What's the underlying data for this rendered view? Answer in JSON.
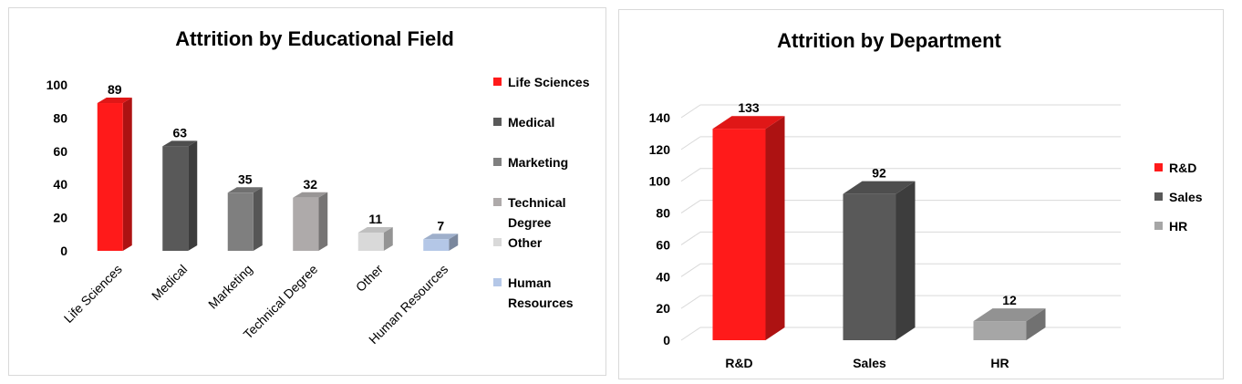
{
  "chart_data": [
    {
      "type": "bar",
      "title": "Attrition by Educational Field",
      "categories": [
        "Life Sciences",
        "Medical",
        "Marketing",
        "Technical Degree",
        "Other",
        "Human Resources"
      ],
      "values": [
        89,
        63,
        35,
        32,
        11,
        7
      ],
      "colors": [
        "#ff1a1a",
        "#595959",
        "#7f7f7f",
        "#aeaaaa",
        "#d9d9d9",
        "#b4c7e7"
      ],
      "legend": [
        [
          "Life Sciences"
        ],
        [
          "Medical"
        ],
        [
          "Marketing"
        ],
        [
          "Technical",
          "Degree"
        ],
        [
          "Other"
        ],
        [
          "Human",
          "Resources"
        ]
      ],
      "yticks": [
        0,
        20,
        40,
        60,
        80,
        100
      ],
      "ylim": [
        0,
        100
      ],
      "legend_position": "right",
      "grid": false,
      "xlabel": "",
      "ylabel": ""
    },
    {
      "type": "bar",
      "title": "Attrition by Department",
      "categories": [
        "R&D",
        "Sales",
        "HR"
      ],
      "values": [
        133,
        92,
        12
      ],
      "colors": [
        "#ff1a1a",
        "#595959",
        "#a6a6a6"
      ],
      "legend": [
        [
          "R&D"
        ],
        [
          "Sales"
        ],
        [
          "HR"
        ]
      ],
      "yticks": [
        0,
        20,
        40,
        60,
        80,
        100,
        120,
        140
      ],
      "ylim": [
        0,
        140
      ],
      "legend_position": "right",
      "grid": true,
      "xlabel": "",
      "ylabel": ""
    }
  ]
}
